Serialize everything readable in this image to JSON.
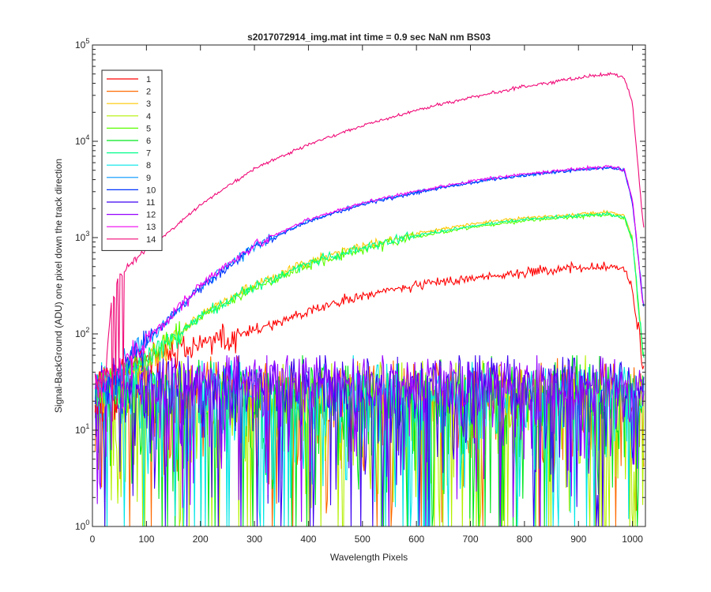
{
  "chart_data": {
    "type": "line",
    "title": "s2017072914_img.mat int time = 0.9 sec  NaN nm BS03",
    "xlabel": "Wavelength Pixels",
    "ylabel": "Signal-BackGround (ADU) one pixel down the track direction",
    "xlim": [
      0,
      1024
    ],
    "ylim": [
      1,
      100000
    ],
    "yscale": "log",
    "x_ticks": [
      0,
      100,
      200,
      300,
      400,
      500,
      600,
      700,
      800,
      900,
      1000
    ],
    "y_ticks": [
      {
        "value": 1,
        "base": "10",
        "exp": "0"
      },
      {
        "value": 10,
        "base": "10",
        "exp": "1"
      },
      {
        "value": 100,
        "base": "10",
        "exp": "2"
      },
      {
        "value": 1000,
        "base": "10",
        "exp": "3"
      },
      {
        "value": 10000,
        "base": "10",
        "exp": "4"
      },
      {
        "value": 100000,
        "base": "10",
        "exp": "5"
      }
    ],
    "grid": false,
    "legend_position": "top-left",
    "series": [
      {
        "name": "1",
        "color": "#ff0000",
        "kind": "signal",
        "points": [
          [
            20,
            30
          ],
          [
            60,
            45
          ],
          [
            100,
            60
          ],
          [
            200,
            80
          ],
          [
            300,
            110
          ],
          [
            400,
            170
          ],
          [
            500,
            250
          ],
          [
            600,
            320
          ],
          [
            700,
            380
          ],
          [
            800,
            440
          ],
          [
            900,
            480
          ],
          [
            960,
            500
          ],
          [
            985,
            470
          ],
          [
            1000,
            300
          ],
          [
            1020,
            40
          ]
        ]
      },
      {
        "name": "2",
        "color": "#ff6a00",
        "kind": "noise",
        "mean": 25
      },
      {
        "name": "3",
        "color": "#ffc800",
        "kind": "signal",
        "points": [
          [
            20,
            30
          ],
          [
            60,
            40
          ],
          [
            100,
            55
          ],
          [
            150,
            90
          ],
          [
            200,
            160
          ],
          [
            300,
            320
          ],
          [
            400,
            560
          ],
          [
            500,
            820
          ],
          [
            600,
            1100
          ],
          [
            700,
            1380
          ],
          [
            800,
            1600
          ],
          [
            900,
            1760
          ],
          [
            960,
            1830
          ],
          [
            985,
            1700
          ],
          [
            1000,
            1000
          ],
          [
            1020,
            60
          ]
        ]
      },
      {
        "name": "4",
        "color": "#b4f000",
        "kind": "noise",
        "mean": 20
      },
      {
        "name": "5",
        "color": "#5aff00",
        "kind": "signal",
        "points": [
          [
            20,
            30
          ],
          [
            60,
            40
          ],
          [
            100,
            55
          ],
          [
            150,
            85
          ],
          [
            200,
            150
          ],
          [
            300,
            300
          ],
          [
            400,
            520
          ],
          [
            500,
            760
          ],
          [
            600,
            1020
          ],
          [
            700,
            1280
          ],
          [
            800,
            1500
          ],
          [
            900,
            1660
          ],
          [
            960,
            1720
          ],
          [
            985,
            1600
          ],
          [
            1000,
            900
          ],
          [
            1020,
            60
          ]
        ]
      },
      {
        "name": "6",
        "color": "#00e61e",
        "kind": "noise",
        "mean": 22
      },
      {
        "name": "7",
        "color": "#00ff8c",
        "kind": "signal",
        "points": [
          [
            20,
            30
          ],
          [
            60,
            40
          ],
          [
            100,
            55
          ],
          [
            150,
            88
          ],
          [
            200,
            155
          ],
          [
            300,
            310
          ],
          [
            400,
            540
          ],
          [
            500,
            780
          ],
          [
            600,
            1050
          ],
          [
            700,
            1310
          ],
          [
            800,
            1540
          ],
          [
            900,
            1700
          ],
          [
            960,
            1760
          ],
          [
            985,
            1640
          ],
          [
            1000,
            950
          ],
          [
            1020,
            60
          ]
        ]
      },
      {
        "name": "8",
        "color": "#00e6e6",
        "kind": "noise",
        "mean": 22
      },
      {
        "name": "9",
        "color": "#0096ff",
        "kind": "signal",
        "points": [
          [
            20,
            30
          ],
          [
            60,
            50
          ],
          [
            100,
            85
          ],
          [
            150,
            160
          ],
          [
            200,
            310
          ],
          [
            300,
            820
          ],
          [
            400,
            1500
          ],
          [
            500,
            2250
          ],
          [
            600,
            3000
          ],
          [
            700,
            3750
          ],
          [
            800,
            4500
          ],
          [
            900,
            5100
          ],
          [
            960,
            5400
          ],
          [
            985,
            5000
          ],
          [
            1000,
            2400
          ],
          [
            1020,
            200
          ]
        ]
      },
      {
        "name": "10",
        "color": "#0032ff",
        "kind": "signal",
        "points": [
          [
            20,
            30
          ],
          [
            60,
            50
          ],
          [
            100,
            85
          ],
          [
            150,
            160
          ],
          [
            200,
            305
          ],
          [
            300,
            800
          ],
          [
            400,
            1480
          ],
          [
            500,
            2200
          ],
          [
            600,
            2950
          ],
          [
            700,
            3700
          ],
          [
            800,
            4450
          ],
          [
            900,
            5050
          ],
          [
            960,
            5350
          ],
          [
            985,
            4950
          ],
          [
            1000,
            2300
          ],
          [
            1020,
            200
          ]
        ]
      },
      {
        "name": "11",
        "color": "#3c00f0",
        "kind": "noise",
        "mean": 28
      },
      {
        "name": "12",
        "color": "#9600ff",
        "kind": "noise",
        "mean": 30
      },
      {
        "name": "13",
        "color": "#f000f0",
        "kind": "signal",
        "points": [
          [
            20,
            30
          ],
          [
            60,
            52
          ],
          [
            100,
            88
          ],
          [
            150,
            165
          ],
          [
            200,
            320
          ],
          [
            300,
            840
          ],
          [
            400,
            1540
          ],
          [
            500,
            2300
          ],
          [
            600,
            3060
          ],
          [
            700,
            3820
          ],
          [
            800,
            4580
          ],
          [
            900,
            5180
          ],
          [
            960,
            5480
          ],
          [
            985,
            5050
          ],
          [
            1000,
            2500
          ],
          [
            1020,
            200
          ]
        ]
      },
      {
        "name": "14",
        "color": "#f00a78",
        "kind": "signal",
        "points": [
          [
            20,
            30
          ],
          [
            35,
            200
          ],
          [
            50,
            400
          ],
          [
            80,
            600
          ],
          [
            120,
            900
          ],
          [
            150,
            1250
          ],
          [
            200,
            2200
          ],
          [
            300,
            5200
          ],
          [
            400,
            9300
          ],
          [
            500,
            14500
          ],
          [
            600,
            21000
          ],
          [
            700,
            28500
          ],
          [
            800,
            37000
          ],
          [
            900,
            45500
          ],
          [
            960,
            51000
          ],
          [
            985,
            46000
          ],
          [
            1000,
            25000
          ],
          [
            1020,
            1300
          ]
        ]
      }
    ]
  }
}
